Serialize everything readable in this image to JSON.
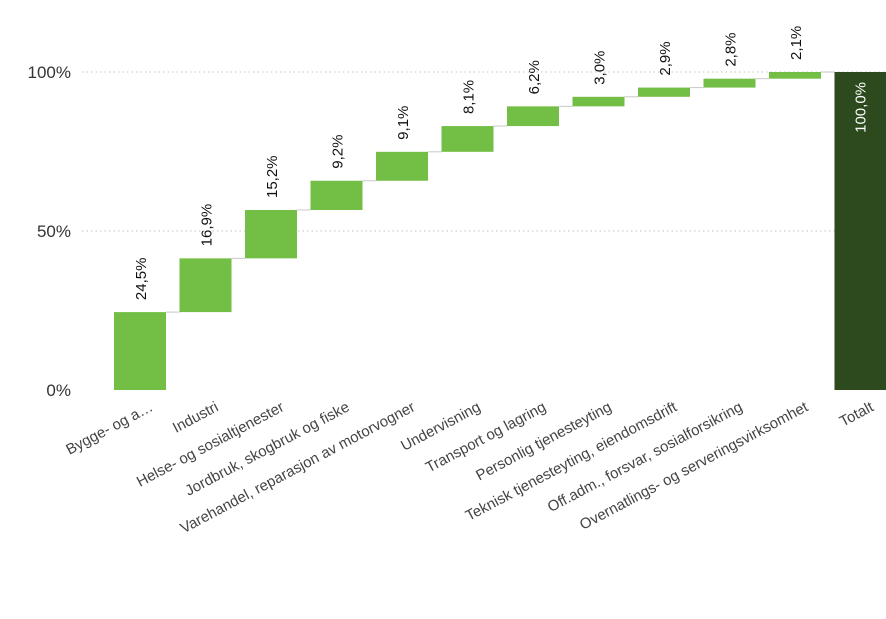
{
  "chart_data": {
    "type": "waterfall",
    "categories": [
      "Bygge- og a…",
      "Industri",
      "Helse- og sosialtjenester",
      "Jordbruk, skogbruk og fiske",
      "Varehandel, reparasjon av motorvogner",
      "Undervisning",
      "Transport og lagring",
      "Personlig tjenesteyting",
      "Teknisk tjenesteyting, eiendomsdrift",
      "Off.adm., forsvar, sosialforsikring",
      "Overnatlings- og serveringsvirksomhet",
      "Totalt"
    ],
    "values": [
      24.5,
      16.9,
      15.2,
      9.2,
      9.1,
      8.1,
      6.2,
      3.0,
      2.9,
      2.8,
      2.1,
      100.0
    ],
    "value_labels": [
      "24,5%",
      "16,9%",
      "15,2%",
      "9,2%",
      "9,1%",
      "8,1%",
      "6,2%",
      "3,0%",
      "2,9%",
      "2,8%",
      "2,1%",
      "100,0%"
    ],
    "total_index": 11,
    "ylim": [
      0,
      100
    ],
    "yticks": [
      0,
      50,
      100
    ],
    "ytick_labels": [
      "0%",
      "50%",
      "100%"
    ],
    "grid": true,
    "colors": {
      "increment": "#73be44",
      "total": "#2d4a1e",
      "connector": "#c8c8c8",
      "grid": "#cfcfcf"
    }
  }
}
